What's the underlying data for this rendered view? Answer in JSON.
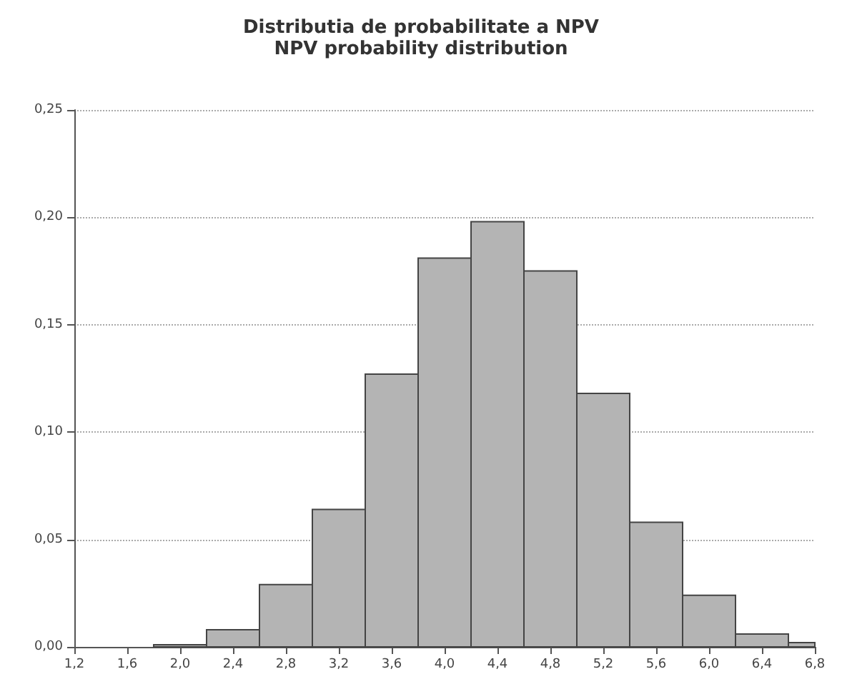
{
  "chart_data": {
    "type": "histogram",
    "title": "Distributia de probabilitate a NPV",
    "subtitle": "NPV probability distribution",
    "bins": [
      1.8,
      2.2,
      2.6,
      3.0,
      3.4,
      3.8,
      4.2,
      4.6,
      5.0,
      5.4,
      5.8,
      6.2,
      6.6,
      6.8
    ],
    "values": [
      0.001,
      0.008,
      0.029,
      0.064,
      0.127,
      0.181,
      0.198,
      0.175,
      0.118,
      0.058,
      0.024,
      0.006,
      0.002
    ],
    "color": "#b4b4b4",
    "xlim": [
      1.2,
      6.8
    ],
    "xticks": [
      {
        "value": 1.2,
        "label": "1,2"
      },
      {
        "value": 1.6,
        "label": "1,6"
      },
      {
        "value": 2.0,
        "label": "2,0"
      },
      {
        "value": 2.4,
        "label": "2,4"
      },
      {
        "value": 2.8,
        "label": "2,8"
      },
      {
        "value": 3.2,
        "label": "3,2"
      },
      {
        "value": 3.6,
        "label": "3,6"
      },
      {
        "value": 4.0,
        "label": "4,0"
      },
      {
        "value": 4.4,
        "label": "4,4"
      },
      {
        "value": 4.8,
        "label": "4,8"
      },
      {
        "value": 5.2,
        "label": "5,2"
      },
      {
        "value": 5.6,
        "label": "5,6"
      },
      {
        "value": 6.0,
        "label": "6,0"
      },
      {
        "value": 6.4,
        "label": "6,4"
      },
      {
        "value": 6.8,
        "label": "6,8"
      }
    ],
    "ylim": [
      0,
      0.25
    ],
    "yticks": [
      {
        "value": 0,
        "label": "0,00"
      },
      {
        "value": 0.05,
        "label": "0,05"
      },
      {
        "value": 0.1,
        "label": "0,10"
      },
      {
        "value": 0.15,
        "label": "0,15"
      },
      {
        "value": 0.2,
        "label": "0,20"
      },
      {
        "value": 0.25,
        "label": "0,25"
      }
    ],
    "grid": "y"
  }
}
